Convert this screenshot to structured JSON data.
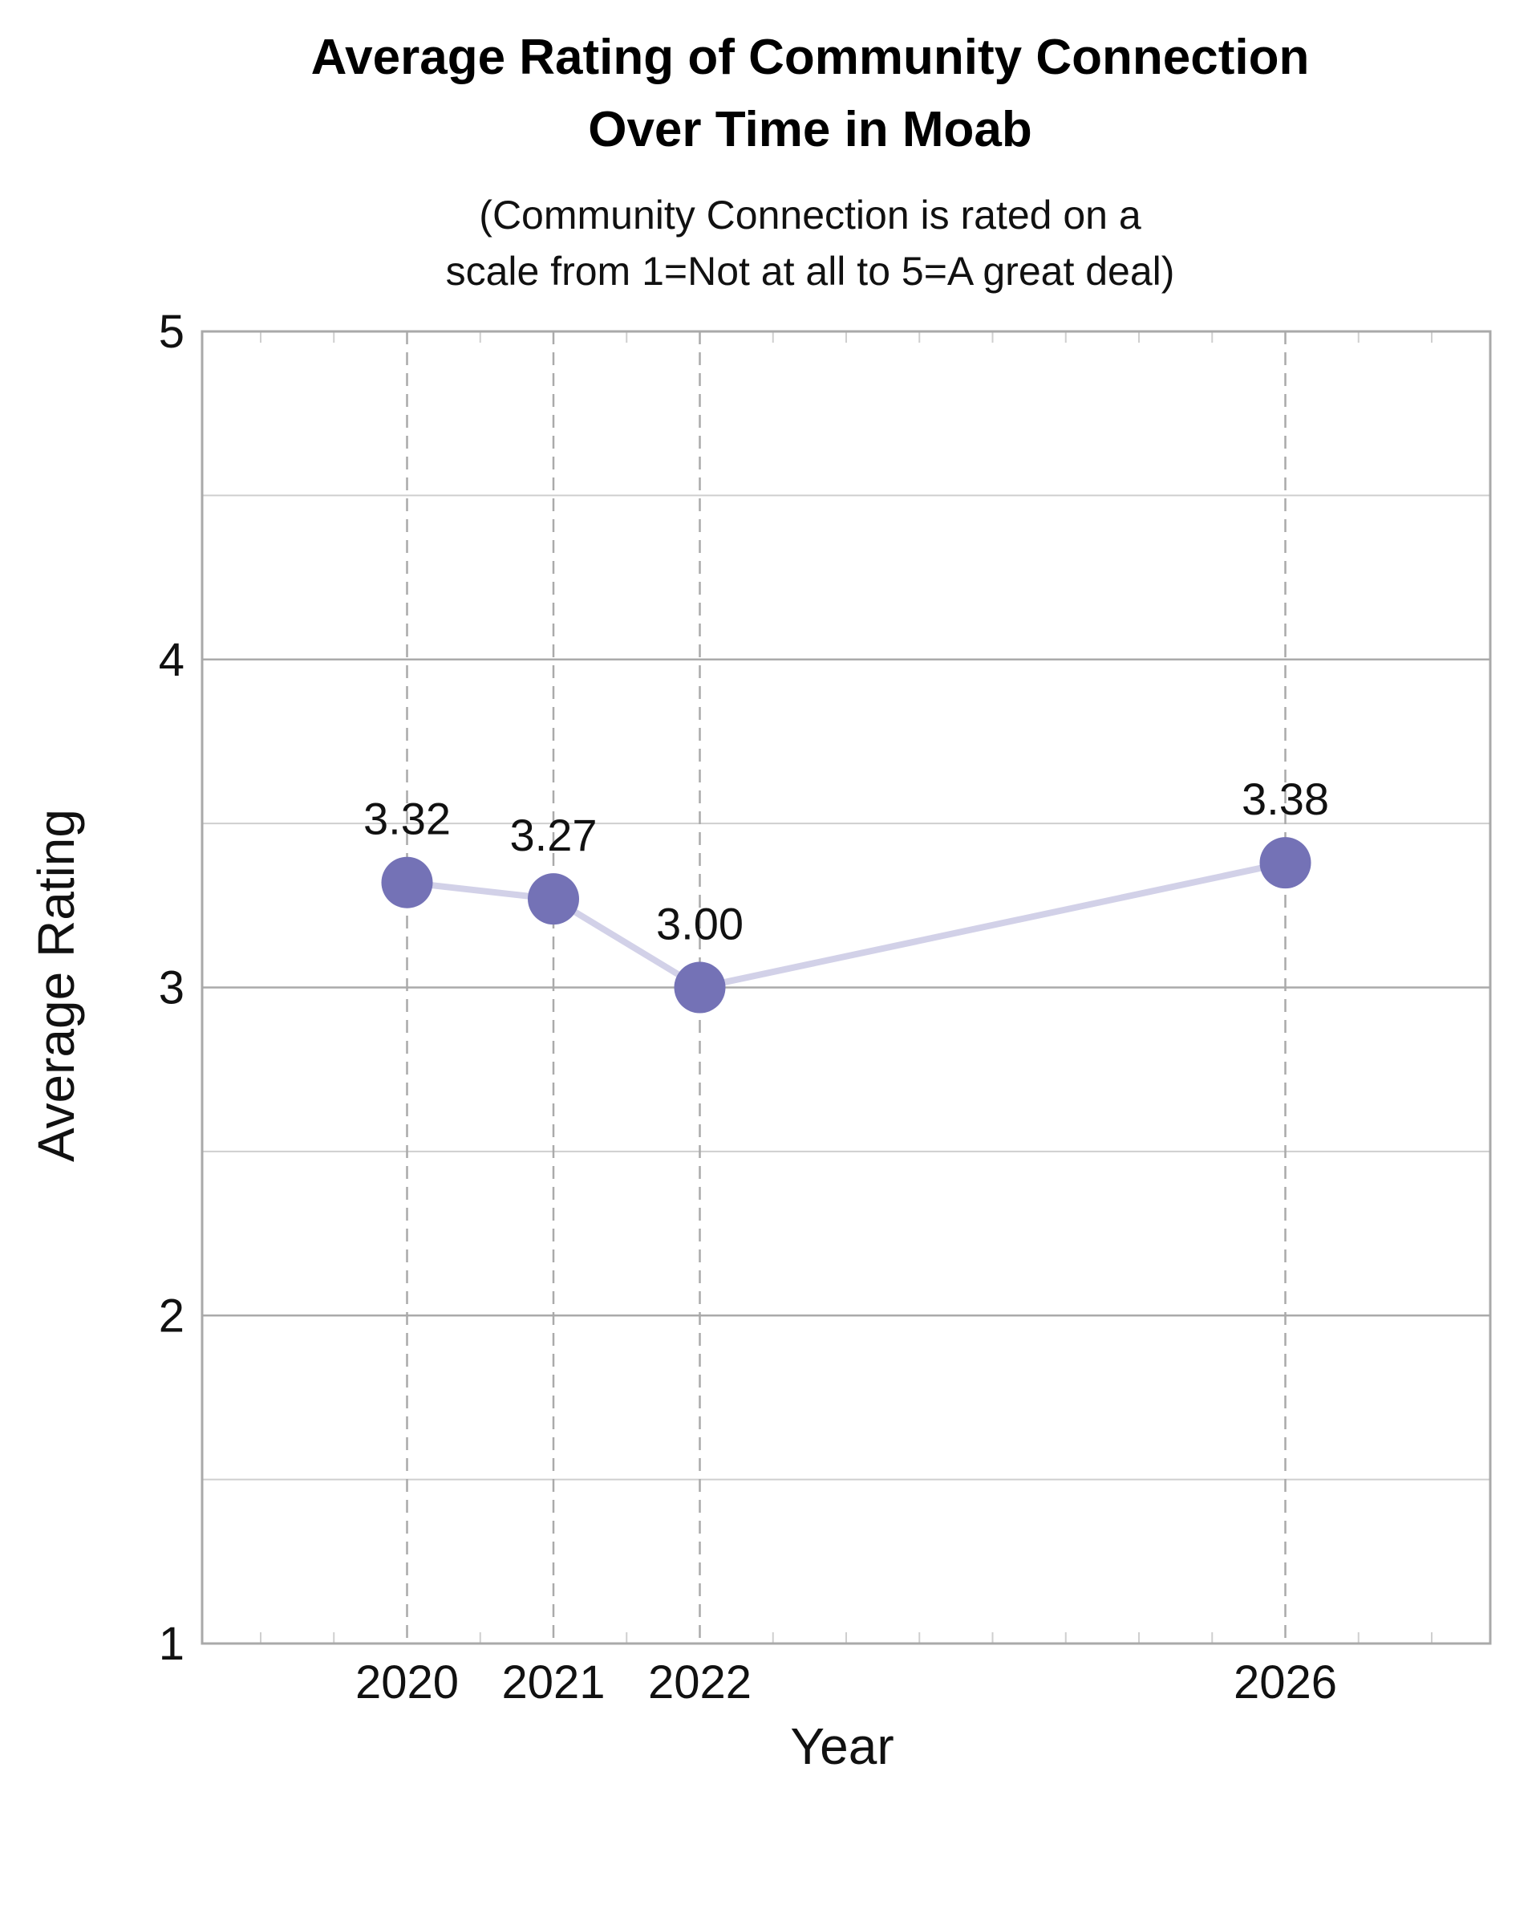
{
  "chart_data": {
    "type": "line",
    "title": [
      "Average Rating of Community Connection",
      "Over Time in Moab"
    ],
    "subtitle": [
      "(Community Connection is rated on a",
      "scale from 1=Not at all to 5=A great deal)"
    ],
    "xlabel": "Year",
    "ylabel": "Average Rating",
    "x": [
      2020,
      2021,
      2022,
      2026
    ],
    "series": [
      {
        "values": [
          3.32,
          3.27,
          3.0,
          3.38
        ],
        "labels": [
          "3.32",
          "3.27",
          "3.00",
          "3.38"
        ]
      }
    ],
    "xlim": [
      2018.6,
      2027.4
    ],
    "ylim": [
      1,
      5
    ],
    "yticks": [
      1,
      2,
      3,
      4,
      5
    ],
    "grid": true,
    "colors": {
      "marker": "#7472b6",
      "line": "#d2d1e8",
      "grid_major": "#aaaaaa",
      "grid_minor": "#cfcfcf",
      "frame": "#a9a9a9"
    }
  }
}
